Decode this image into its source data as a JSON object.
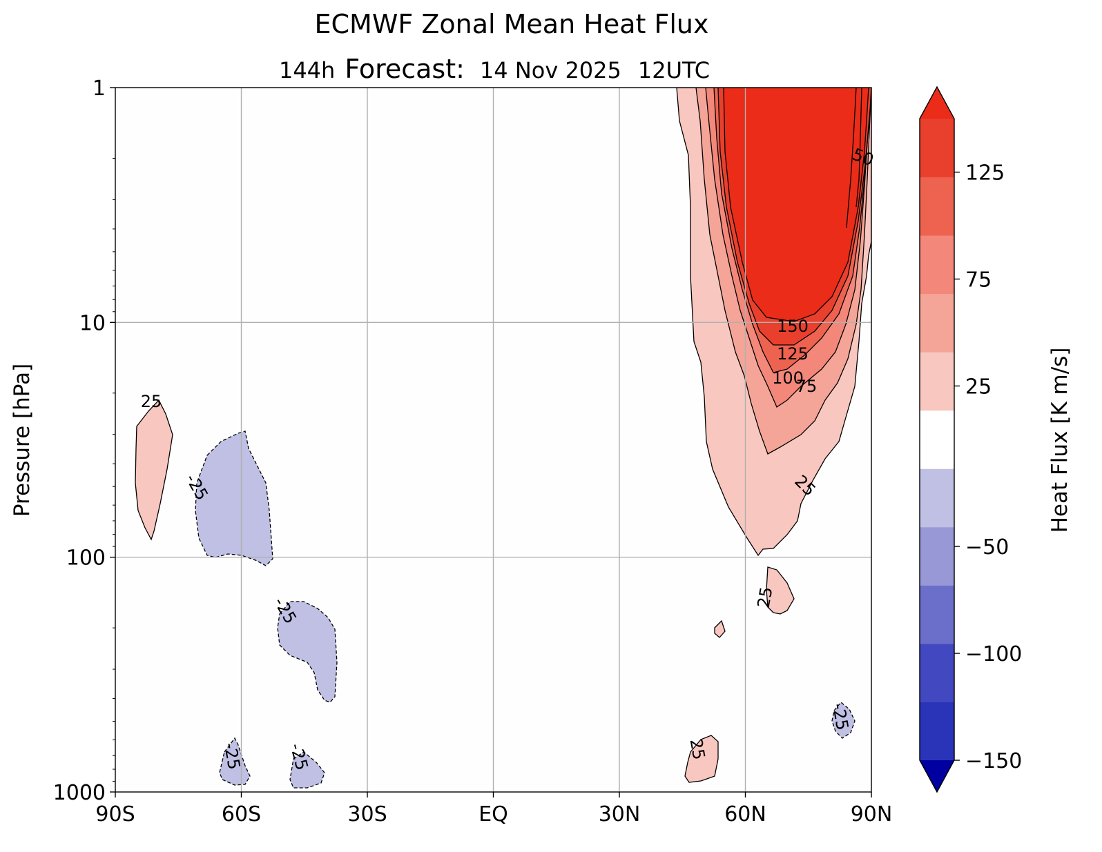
{
  "chart_data": {
    "type": "heatmap",
    "title": "ECMWF Zonal Mean Heat Flux",
    "subtitle": {
      "lead": "144h",
      "kind": "Forecast:",
      "date": "14 Nov 2025",
      "time": "12UTC"
    },
    "xlabel": "",
    "ylabel": "Pressure [hPa]",
    "x_ticks": [
      "90S",
      "60S",
      "30S",
      "EQ",
      "30N",
      "60N",
      "90N"
    ],
    "x_tick_values": [
      -90,
      -60,
      -30,
      0,
      30,
      60,
      90
    ],
    "xlim": [
      -90,
      90
    ],
    "y_scale": "log",
    "y_inverted": true,
    "y_ticks": [
      "1",
      "10",
      "100",
      "1000"
    ],
    "y_tick_values": [
      1,
      10,
      100,
      1000
    ],
    "ylim": [
      1000,
      1
    ],
    "grid": true,
    "colorbar": {
      "label": "Heat Flux [K  m/s]",
      "levels": [
        -150,
        -125,
        -100,
        -75,
        -50,
        -25,
        25,
        50,
        75,
        100,
        125,
        150
      ],
      "tick_labels": [
        "125",
        "75",
        "25",
        "−50",
        "−100",
        "−150"
      ],
      "tick_values": [
        125,
        75,
        25,
        -50,
        -100,
        -150
      ],
      "colors": [
        "#0c10a9",
        "#2a34b8",
        "#4248bf",
        "#6b6fca",
        "#9798d5",
        "#bfc0e4",
        "#ffffff",
        "#f8c7c0",
        "#f4a598",
        "#f3877a",
        "#ee6350",
        "#e9402e",
        "#ea2c18"
      ],
      "under_color": "#0000a0",
      "over_color": "#ea2c18",
      "extend": "both"
    },
    "contour_labels": [
      "150",
      "125",
      "100",
      "75",
      "50",
      "25",
      "25",
      "25",
      "25",
      "-25",
      "-25",
      "-25",
      "-25",
      "-25",
      "-25"
    ],
    "regions": [
      {
        "name": "NH stratospheric positive flux maximum",
        "level_min": 150,
        "lat_range": [
          52,
          89
        ],
        "pressure_range": [
          1,
          10
        ]
      },
      {
        "name": "NH positive flux tongue",
        "level_min": 25,
        "lat_range": [
          45,
          90
        ],
        "pressure_range": [
          1,
          100
        ]
      },
      {
        "name": "SH positive flux patch",
        "level_min": 25,
        "lat_range": [
          -85,
          -77
        ],
        "pressure_range": [
          22,
          120
        ]
      },
      {
        "name": "SH negative flux patch",
        "level_max": -25,
        "lat_range": [
          -72,
          -53
        ],
        "pressure_range": [
          30,
          103
        ]
      },
      {
        "name": "SH negative flux patch",
        "level_max": -25,
        "lat_range": [
          -52,
          -37
        ],
        "pressure_range": [
          180,
          640
        ]
      },
      {
        "name": "SH negative flux patch",
        "level_max": -25,
        "lat_range": [
          -64,
          -58
        ],
        "pressure_range": [
          700,
          985
        ]
      },
      {
        "name": "SH negative flux patch",
        "level_max": -25,
        "lat_range": [
          -48,
          -35
        ],
        "pressure_range": [
          750,
          990
        ]
      },
      {
        "name": "NH positive flux patch",
        "level_min": 25,
        "lat_range": [
          64,
          73
        ],
        "pressure_range": [
          110,
          230
        ]
      },
      {
        "name": "NH positive flux patch",
        "level_min": 25,
        "lat_range": [
          52,
          55
        ],
        "pressure_range": [
          280,
          350
        ]
      },
      {
        "name": "NH positive flux patch",
        "level_min": 25,
        "lat_range": [
          46,
          53
        ],
        "pressure_range": [
          700,
          980
        ]
      },
      {
        "name": "NH negative flux patch",
        "level_max": -25,
        "lat_range": [
          81,
          87
        ],
        "pressure_range": [
          650,
          870
        ]
      }
    ]
  }
}
